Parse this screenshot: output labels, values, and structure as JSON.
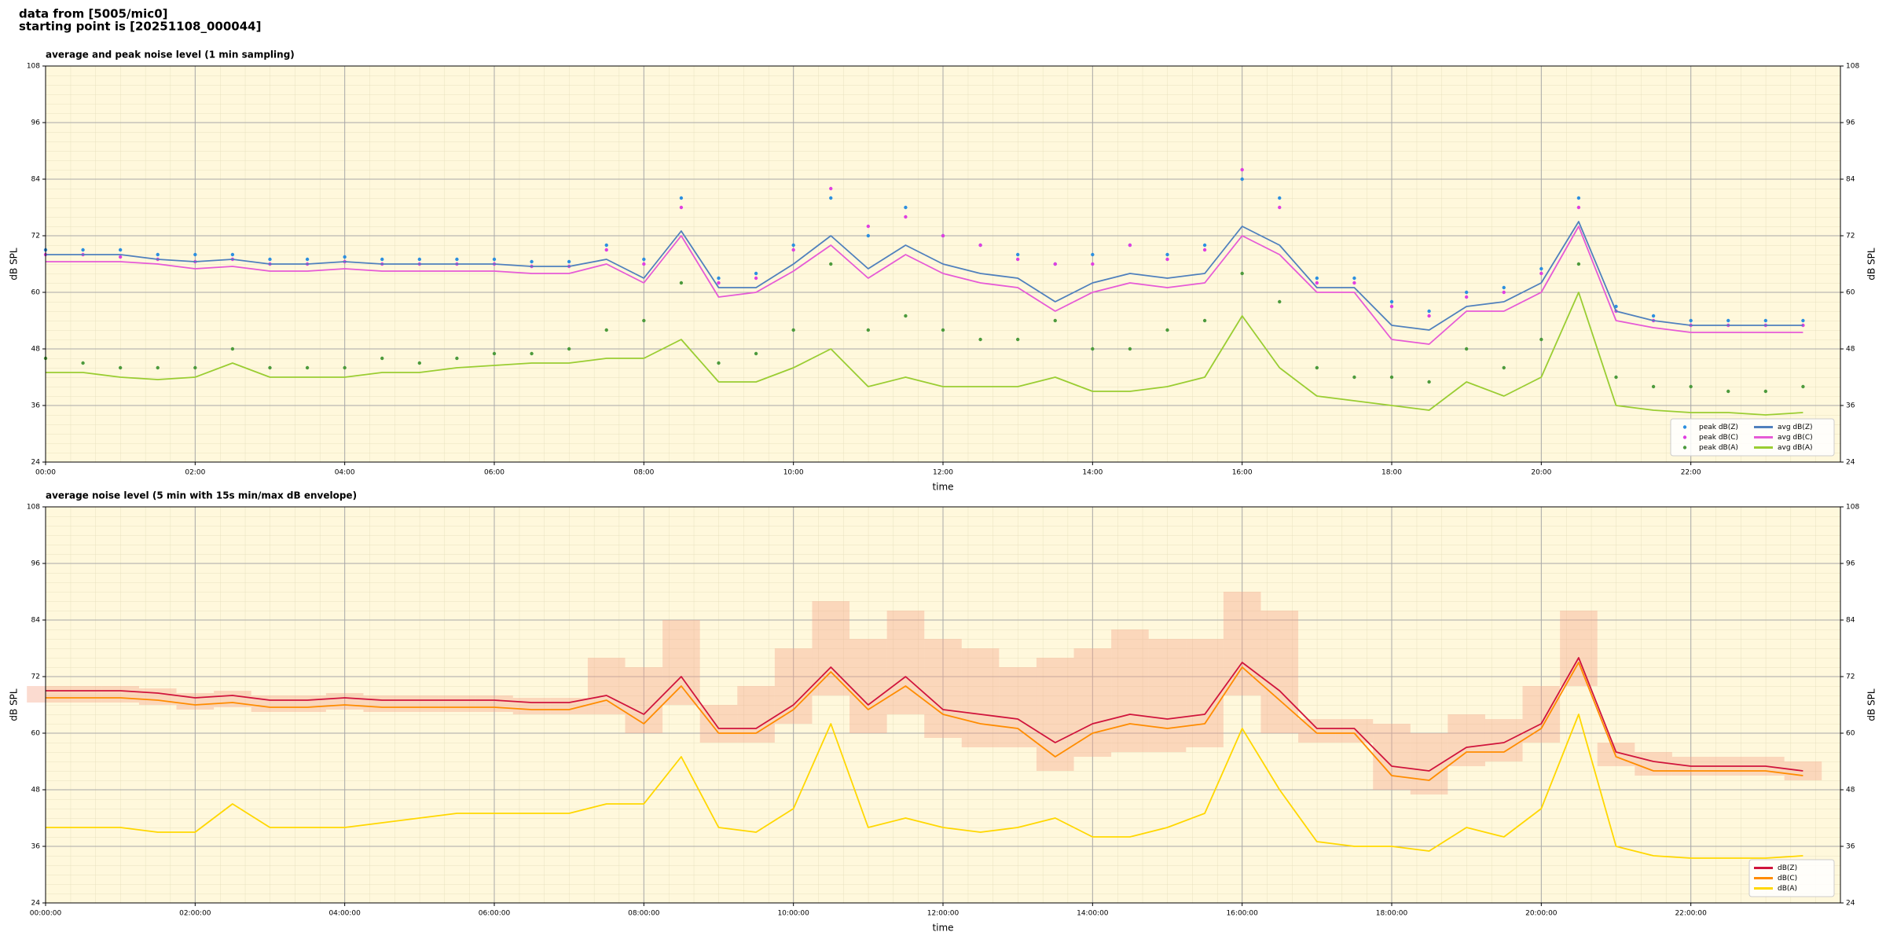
{
  "header": {
    "line1": "data from [5005/mic0]",
    "line2": "starting point is [20251108_000044]"
  },
  "chart_data": [
    {
      "type": "line",
      "title": "average and peak noise level (1 min sampling)",
      "xlabel": "time",
      "ylabel": "dB SPL",
      "xlim": [
        0,
        24
      ],
      "ylim": [
        24,
        108
      ],
      "yticks": [
        24,
        36,
        48,
        60,
        72,
        84,
        96,
        108
      ],
      "xticks": [
        {
          "value": 0,
          "label": "00:00"
        },
        {
          "value": 2,
          "label": "02:00"
        },
        {
          "value": 4,
          "label": "04:00"
        },
        {
          "value": 6,
          "label": "06:00"
        },
        {
          "value": 8,
          "label": "08:00"
        },
        {
          "value": 10,
          "label": "10:00"
        },
        {
          "value": 12,
          "label": "12:00"
        },
        {
          "value": 14,
          "label": "14:00"
        },
        {
          "value": 16,
          "label": "16:00"
        },
        {
          "value": 18,
          "label": "18:00"
        },
        {
          "value": 20,
          "label": "20:00"
        },
        {
          "value": 22,
          "label": "22:00"
        }
      ],
      "grid": true,
      "legend": "lower right",
      "legend_columns": 2,
      "x": [
        0,
        0.5,
        1,
        1.5,
        2,
        2.5,
        3,
        3.5,
        4,
        4.5,
        5,
        5.5,
        6,
        6.5,
        7,
        7.5,
        8,
        8.5,
        9,
        9.5,
        10,
        10.5,
        11,
        11.5,
        12,
        12.5,
        13,
        13.5,
        14,
        14.5,
        15,
        15.5,
        16,
        16.5,
        17,
        17.5,
        18,
        18.5,
        19,
        19.5,
        20,
        20.5,
        21,
        21.5,
        22,
        22.5,
        23,
        23.5
      ],
      "series": [
        {
          "name": "peak dB(Z)",
          "color": "#2b8fe0",
          "mark": "dot",
          "values": [
            69,
            69,
            69,
            68,
            68,
            68,
            67,
            67,
            67.5,
            67,
            67,
            67,
            67,
            66.5,
            66.5,
            70,
            67,
            80,
            63,
            64,
            70,
            80,
            72,
            78,
            72,
            70,
            68,
            66,
            68,
            70,
            68,
            70,
            84,
            80,
            63,
            63,
            58,
            56,
            60,
            61,
            65,
            80,
            57,
            55,
            54,
            54,
            54,
            54
          ]
        },
        {
          "name": "peak dB(C)",
          "color": "#e03ee0",
          "mark": "dot",
          "values": [
            68,
            68,
            67.5,
            67,
            66.5,
            67,
            66,
            66,
            66.5,
            66,
            66,
            66,
            66,
            65.5,
            65.5,
            69,
            66,
            78,
            62,
            63,
            69,
            82,
            74,
            76,
            72,
            70,
            67,
            66,
            66,
            70,
            67,
            69,
            86,
            78,
            62,
            62,
            57,
            55,
            59,
            60,
            64,
            78,
            56,
            54,
            53,
            53,
            53,
            53
          ]
        },
        {
          "name": "peak dB(A)",
          "color": "#4c9a3c",
          "mark": "dot",
          "values": [
            46,
            45,
            44,
            44,
            44,
            48,
            44,
            44,
            44,
            46,
            45,
            46,
            47,
            47,
            48,
            52,
            54,
            62,
            45,
            47,
            52,
            66,
            52,
            55,
            52,
            50,
            50,
            54,
            48,
            48,
            52,
            54,
            64,
            58,
            44,
            42,
            42,
            41,
            48,
            44,
            50,
            66,
            42,
            40,
            40,
            39,
            39,
            40
          ]
        },
        {
          "name": "avg dB(Z)",
          "color": "#4f80bd",
          "mark": "line",
          "values": [
            68,
            68,
            68,
            67,
            66.5,
            67,
            66,
            66,
            66.5,
            66,
            66,
            66,
            66,
            65.5,
            65.5,
            67,
            63,
            73,
            61,
            61,
            66,
            72,
            65,
            70,
            66,
            64,
            63,
            58,
            62,
            64,
            63,
            64,
            74,
            70,
            61,
            61,
            53,
            52,
            57,
            58,
            62,
            75,
            56,
            54,
            53,
            53,
            53,
            53
          ]
        },
        {
          "name": "avg dB(C)",
          "color": "#e65ad6",
          "mark": "line",
          "values": [
            66.5,
            66.5,
            66.5,
            66,
            65,
            65.5,
            64.5,
            64.5,
            65,
            64.5,
            64.5,
            64.5,
            64.5,
            64,
            64,
            66,
            62,
            72,
            59,
            60,
            64.5,
            70,
            63,
            68,
            64,
            62,
            61,
            56,
            60,
            62,
            61,
            62,
            72,
            68,
            60,
            60,
            50,
            49,
            56,
            56,
            60,
            74,
            54,
            52.5,
            51.5,
            51.5,
            51.5,
            51.5
          ]
        },
        {
          "name": "avg dB(A)",
          "color": "#9acd32",
          "mark": "line",
          "values": [
            43,
            43,
            42,
            41.5,
            42,
            45,
            42,
            42,
            42,
            43,
            43,
            44,
            44.5,
            45,
            45,
            46,
            46,
            50,
            41,
            41,
            44,
            48,
            40,
            42,
            40,
            40,
            40,
            42,
            39,
            39,
            40,
            42,
            55,
            44,
            38,
            37,
            36,
            35,
            41,
            38,
            42,
            60,
            36,
            35,
            34.5,
            34.5,
            34,
            34.5
          ]
        }
      ]
    },
    {
      "type": "line",
      "title": "average noise level (5 min with 15s min/max dB envelope)",
      "xlabel": "time",
      "ylabel": "dB SPL",
      "xlim": [
        0,
        24
      ],
      "ylim": [
        24,
        108
      ],
      "yticks": [
        24,
        36,
        48,
        60,
        72,
        84,
        96,
        108
      ],
      "xticks": [
        {
          "value": 0,
          "label": "00:00:00"
        },
        {
          "value": 2,
          "label": "02:00:00"
        },
        {
          "value": 4,
          "label": "04:00:00"
        },
        {
          "value": 6,
          "label": "06:00:00"
        },
        {
          "value": 8,
          "label": "08:00:00"
        },
        {
          "value": 10,
          "label": "10:00:00"
        },
        {
          "value": 12,
          "label": "12:00:00"
        },
        {
          "value": 14,
          "label": "14:00:00"
        },
        {
          "value": 16,
          "label": "16:00:00"
        },
        {
          "value": 18,
          "label": "18:00:00"
        },
        {
          "value": 20,
          "label": "20:00:00"
        },
        {
          "value": 22,
          "label": "22:00:00"
        }
      ],
      "grid": true,
      "legend": "lower right",
      "legend_columns": 1,
      "x": [
        0,
        0.5,
        1,
        1.5,
        2,
        2.5,
        3,
        3.5,
        4,
        4.5,
        5,
        5.5,
        6,
        6.5,
        7,
        7.5,
        8,
        8.5,
        9,
        9.5,
        10,
        10.5,
        11,
        11.5,
        12,
        12.5,
        13,
        13.5,
        14,
        14.5,
        15,
        15.5,
        16,
        16.5,
        17,
        17.5,
        18,
        18.5,
        19,
        19.5,
        20,
        20.5,
        21,
        21.5,
        22,
        22.5,
        23,
        23.5
      ],
      "envelope": {
        "color": "#f4a58a",
        "lower": [
          66.5,
          66.5,
          66.5,
          66,
          65,
          65.5,
          64.5,
          64.5,
          65,
          64.5,
          64.5,
          64.5,
          64.5,
          64,
          64,
          64,
          60,
          66,
          58,
          58,
          62,
          68,
          60,
          64,
          59,
          57,
          57,
          52,
          55,
          56,
          56,
          57,
          68,
          60,
          58,
          58,
          48,
          47,
          53,
          54,
          58,
          70,
          53,
          51,
          51,
          51,
          51,
          50
        ],
        "upper": [
          70,
          70,
          70,
          69.5,
          68.5,
          69,
          68,
          68,
          68.5,
          68,
          68,
          68,
          68,
          67.5,
          67.5,
          76,
          74,
          84,
          66,
          70,
          78,
          88,
          80,
          86,
          80,
          78,
          74,
          76,
          78,
          82,
          80,
          80,
          90,
          86,
          63,
          63,
          62,
          60,
          64,
          63,
          70,
          86,
          58,
          56,
          55,
          55,
          55,
          54
        ]
      },
      "series": [
        {
          "name": "dB(Z)",
          "color": "#d0143c",
          "mark": "line",
          "values": [
            69,
            69,
            69,
            68.5,
            67.5,
            68,
            67,
            67,
            67.5,
            67,
            67,
            67,
            67,
            66.5,
            66.5,
            68,
            64,
            72,
            61,
            61,
            66,
            74,
            66,
            72,
            65,
            64,
            63,
            58,
            62,
            64,
            63,
            64,
            75,
            69,
            61,
            61,
            53,
            52,
            57,
            58,
            62,
            76,
            56,
            54,
            53,
            53,
            53,
            52
          ]
        },
        {
          "name": "dB(C)",
          "color": "#ff8c00",
          "mark": "line",
          "values": [
            67.5,
            67.5,
            67.5,
            67,
            66,
            66.5,
            65.5,
            65.5,
            66,
            65.5,
            65.5,
            65.5,
            65.5,
            65,
            65,
            67,
            62,
            70,
            60,
            60,
            65,
            73,
            65,
            70,
            64,
            62,
            61,
            55,
            60,
            62,
            61,
            62,
            74,
            67,
            60,
            60,
            51,
            50,
            56,
            56,
            61,
            75,
            55,
            52,
            52,
            52,
            52,
            51
          ]
        },
        {
          "name": "dB(A)",
          "color": "#ffd700",
          "mark": "line",
          "values": [
            40,
            40,
            40,
            39,
            39,
            45,
            40,
            40,
            40,
            41,
            42,
            43,
            43,
            43,
            43,
            45,
            45,
            55,
            40,
            39,
            44,
            62,
            40,
            42,
            40,
            39,
            40,
            42,
            38,
            38,
            40,
            43,
            61,
            48,
            37,
            36,
            36,
            35,
            40,
            38,
            44,
            64,
            36,
            34,
            33.5,
            33.5,
            33.5,
            34
          ]
        }
      ]
    }
  ]
}
